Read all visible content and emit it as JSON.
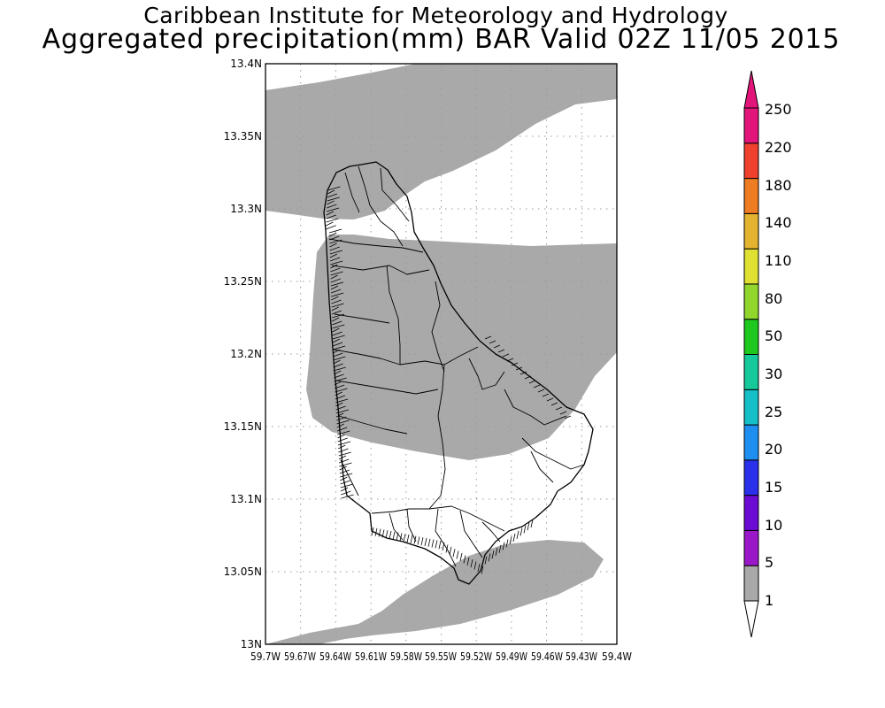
{
  "title": "Caribbean Institute for Meteorology and Hydrology",
  "subtitle": "Aggregated precipitation(mm) BAR Valid 02Z 11/05 2015",
  "map": {
    "lon_range": [
      -59.7,
      -59.4
    ],
    "lat_range": [
      13.0,
      13.4
    ],
    "lat_ticks": [
      "13.4N",
      "13.35N",
      "13.3N",
      "13.25N",
      "13.2N",
      "13.15N",
      "13.1N",
      "13.05N",
      "13N"
    ],
    "lon_ticks": [
      "59.7W",
      "59.67W",
      "59.64W",
      "59.61W",
      "59.58W",
      "59.55W",
      "59.52W",
      "59.49W",
      "59.46W",
      "59.43W",
      "59.4W"
    ],
    "grid": "dotted",
    "precip_fill_color": "#a9a9a9",
    "precip_fill_level": "1-5"
  },
  "colorbar": {
    "labels": [
      "1",
      "5",
      "10",
      "15",
      "20",
      "25",
      "30",
      "50",
      "80",
      "110",
      "140",
      "180",
      "220",
      "250"
    ],
    "colors": [
      "#a9a9a9",
      "#9b18c9",
      "#6b0bd4",
      "#2b30ea",
      "#1e8ef0",
      "#15bfc8",
      "#15c99a",
      "#1ec81e",
      "#91d62c",
      "#e0e032",
      "#e4b330",
      "#ee7c22",
      "#f0402e",
      "#e2157b"
    ]
  }
}
